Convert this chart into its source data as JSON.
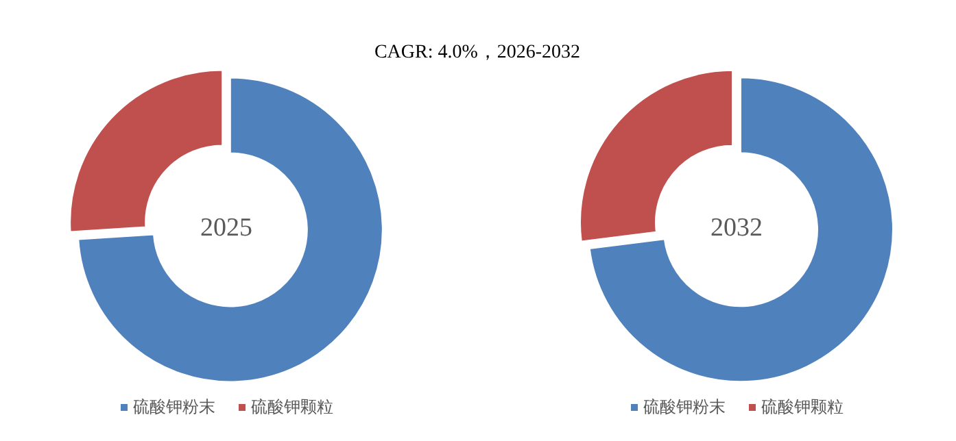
{
  "chart_data": [
    {
      "type": "donut",
      "title": "CAGR:   4.0%，2026-2032",
      "categories": [
        "硫酸钾粉末",
        "硫酸钾颗粒"
      ],
      "values": [
        74,
        26
      ],
      "colors": [
        "#4f81bd",
        "#c0504d"
      ],
      "annotations": [
        "2025"
      ],
      "legend": "bottom"
    },
    {
      "type": "donut",
      "categories": [
        "硫酸钾粉末",
        "硫酸钾颗粒"
      ],
      "values": [
        73,
        27
      ],
      "colors": [
        "#4f81bd",
        "#c0504d"
      ],
      "annotations": [
        "2032"
      ],
      "legend": "bottom"
    }
  ]
}
